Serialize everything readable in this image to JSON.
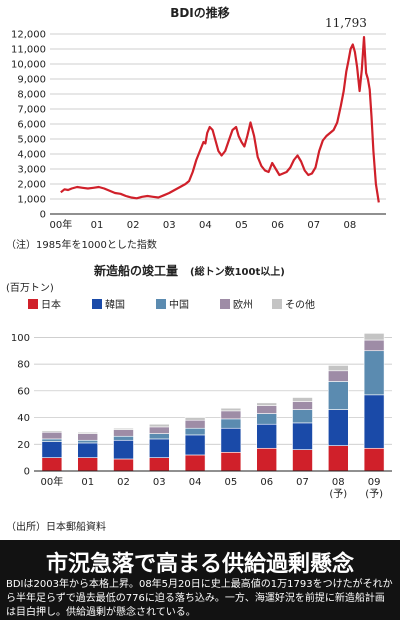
{
  "chart_data": [
    {
      "type": "line",
      "title": "BDIの推移",
      "note": "（注）1985年を1000とした指数",
      "ylim": [
        0,
        12000
      ],
      "yticks": [
        0,
        1000,
        2000,
        3000,
        4000,
        5000,
        6000,
        7000,
        8000,
        9000,
        10000,
        11000,
        12000
      ],
      "ytick_labels": [
        "0",
        "1,000",
        "2,000",
        "3,000",
        "4,000",
        "5,000",
        "6,000",
        "7,000",
        "8,000",
        "9,000",
        "10,000",
        "11,000",
        "12,000"
      ],
      "xlim": [
        1999.7,
        2009.0
      ],
      "xticks": [
        2000,
        2001,
        2002,
        2003,
        2004,
        2005,
        2006,
        2007,
        2008
      ],
      "xtick_labels": [
        "00年",
        "01",
        "02",
        "03",
        "04",
        "05",
        "06",
        "07",
        "08"
      ],
      "annotation": {
        "label": "11,793",
        "x": 2008.39,
        "y": 11793
      },
      "color": "#d0202a",
      "series": [
        {
          "x": [
            2000.0,
            2000.1,
            2000.2,
            2000.3,
            2000.45,
            2000.6,
            2000.75,
            2000.9,
            2001.05,
            2001.2,
            2001.35,
            2001.5,
            2001.65,
            2001.8,
            2001.95,
            2002.1,
            2002.25,
            2002.4,
            2002.55,
            2002.7,
            2002.85,
            2003.0,
            2003.15,
            2003.3,
            2003.45,
            2003.55,
            2003.65,
            2003.75,
            2003.85,
            2003.95,
            2004.0,
            2004.05,
            2004.12,
            2004.2,
            2004.28,
            2004.36,
            2004.45,
            2004.55,
            2004.65,
            2004.75,
            2004.85,
            2004.92,
            2005.0,
            2005.08,
            2005.16,
            2005.25,
            2005.35,
            2005.45,
            2005.55,
            2005.65,
            2005.75,
            2005.85,
            2005.95,
            2006.05,
            2006.15,
            2006.25,
            2006.35,
            2006.45,
            2006.55,
            2006.65,
            2006.75,
            2006.85,
            2006.95,
            2007.05,
            2007.15,
            2007.25,
            2007.35,
            2007.45,
            2007.55,
            2007.65,
            2007.75,
            2007.83,
            2007.9,
            2007.96,
            2008.02,
            2008.08,
            2008.14,
            2008.2,
            2008.27,
            2008.33,
            2008.39,
            2008.45,
            2008.5,
            2008.55,
            2008.6,
            2008.65,
            2008.72,
            2008.8
          ],
          "y": [
            1450,
            1650,
            1600,
            1700,
            1800,
            1750,
            1700,
            1750,
            1800,
            1700,
            1550,
            1400,
            1350,
            1200,
            1100,
            1050,
            1150,
            1200,
            1150,
            1100,
            1250,
            1400,
            1600,
            1800,
            2000,
            2200,
            2800,
            3600,
            4200,
            4800,
            4700,
            5400,
            5800,
            5600,
            4900,
            4200,
            3900,
            4200,
            4900,
            5600,
            5800,
            5200,
            4800,
            4500,
            5200,
            6100,
            5200,
            3800,
            3200,
            2900,
            2800,
            3400,
            3000,
            2600,
            2700,
            2800,
            3100,
            3600,
            3900,
            3500,
            2900,
            2600,
            2700,
            3100,
            4200,
            4900,
            5200,
            5400,
            5600,
            6100,
            7200,
            8200,
            9500,
            10200,
            11000,
            11300,
            10800,
            9800,
            8200,
            9600,
            11793,
            9400,
            9000,
            8300,
            6500,
            4200,
            2000,
            776
          ]
        }
      ]
    },
    {
      "type": "bar",
      "stacked": true,
      "title_main": "新造船の竣工量",
      "title_sub": "(総トン数100t以上)",
      "ylabel": "(百万トン)",
      "source": "（出所）日本郵船資料",
      "ylim": [
        0,
        110
      ],
      "yticks": [
        0,
        20,
        40,
        60,
        80,
        100
      ],
      "categories": [
        "00年",
        "01",
        "02",
        "03",
        "04",
        "05",
        "06",
        "07",
        "08\n(予)",
        "09\n(予)"
      ],
      "series": [
        {
          "name": "日本",
          "color": "#d0202a",
          "values": [
            10,
            10,
            9,
            10,
            12,
            14,
            17,
            16,
            19,
            17
          ]
        },
        {
          "name": "韓国",
          "color": "#1a4aa8",
          "values": [
            12,
            11,
            14,
            14,
            15,
            18,
            18,
            20,
            27,
            40
          ]
        },
        {
          "name": "中国",
          "color": "#5b8bb0",
          "values": [
            2,
            2,
            3,
            4,
            5,
            7,
            8,
            10,
            21,
            33
          ]
        },
        {
          "name": "欧州",
          "color": "#9e8ca6",
          "values": [
            5,
            5,
            5,
            5,
            6,
            6,
            6,
            6,
            8,
            8
          ]
        },
        {
          "name": "その他",
          "color": "#c4c4c4",
          "values": [
            1,
            1,
            1,
            2,
            2,
            2,
            2,
            3,
            4,
            5
          ]
        }
      ]
    }
  ],
  "banner": {
    "title": "市況急落で高まる供給過剰懸念",
    "body": "BDIは2003年から本格上昇。08年5月20日に史上最高値の1万1793をつけたがそれから半年足らずで過去最低の776に迫る落ち込み。一方、海運好況を前提に新造船計画は目白押し。供給過剰が懸念されている。"
  }
}
